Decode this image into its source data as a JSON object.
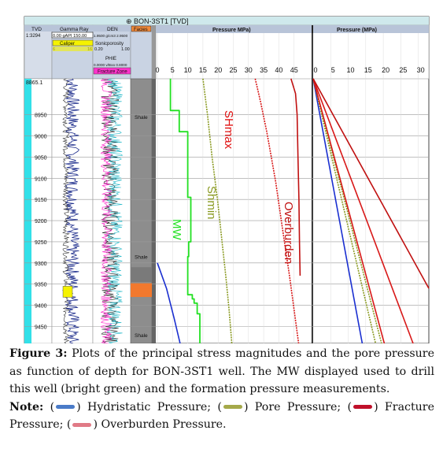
{
  "header": {
    "well_title": "⊕ BON-3ST1 [TVD]",
    "col_tvd": "TVD",
    "tvd_scale": "1:3294",
    "col_gamma": "Gamma Ray",
    "gamma_range": "0.00 gAPI 150.00",
    "col_den": "DEN",
    "den_range": "1.9500 g/cm3 2.9500",
    "col_facies": "Facies",
    "caliper": "Caliper",
    "caliper_low": "6",
    "caliper_high": "16",
    "sonic": "Sonicporosity",
    "sonic_low": "0.20",
    "sonic_high": "1.00",
    "phie": "PHIE",
    "phie_range": "0.0000 v/Boo 0.8000",
    "fracture_zone": "Fracture Zone",
    "panel1_title": "Pressure MPa)",
    "panel2_title": "Pressure (MPa)"
  },
  "facies_labels": [
    {
      "depth": 8960,
      "text": "Shale"
    },
    {
      "depth": 9290,
      "text": "Shale"
    },
    {
      "depth": 9475,
      "text": "Shale"
    }
  ],
  "annotations": {
    "shmax": "SHmax",
    "shmin": "Shmin",
    "mw": "MW",
    "overburden": "Overburden"
  },
  "caption": {
    "fig_label": "Figure 3:",
    "fig_text": " Plots of the principal stress magnitudes and the pore pressure as function of depth for BON-3ST1 well. The MW displayed used to drill this well (bright green) and the formation pressure measurements.",
    "note_label": "Note:",
    "legend": [
      {
        "prefix": " (",
        "color": "#4a7bc8",
        "suffix": ") Hydristatic Pressure;"
      },
      {
        "prefix": " (",
        "color": "#a5a94a",
        "suffix": ") Pore Pressure;"
      },
      {
        "prefix": " (",
        "color": "#c0102a",
        "suffix": ") Fracture Pressure;"
      },
      {
        "prefix": " (",
        "color": "#e07a86",
        "suffix": ") Overburden Pressure."
      }
    ]
  },
  "colors": {
    "header_bg": "#c9d3e3",
    "title_bar": "#cfe9ec",
    "tvd_cyan": "#33e0e8",
    "yellow": "#f5f200",
    "magenta": "#ff33cc",
    "hydro": "#1a2fd0",
    "pore": "#8a9a22",
    "mw": "#22e022",
    "frac": "#d81818",
    "overburden": "#c01010"
  },
  "chart_data": [
    {
      "type": "line",
      "panel": "left",
      "title": "Pressure MPa)",
      "y_ticks": [
        8950,
        9000,
        9050,
        9100,
        9150,
        9200,
        9250,
        9300,
        9350,
        9400,
        9450
      ],
      "ylim": [
        8865.1,
        9490
      ],
      "y_top_label": "8865.1",
      "x_ticks": [
        0,
        5,
        10,
        15,
        20,
        25,
        30,
        35,
        40,
        45
      ],
      "xlim": [
        0,
        50
      ],
      "series": [
        {
          "name": "",
          "key": "hydro",
          "x": [
            0,
            3,
            5.5,
            7.5
          ],
          "y": [
            9300,
            9360,
            9430,
            9490
          ]
        },
        {
          "name": "MW",
          "key": "mw",
          "step": true,
          "x": [
            4.3,
            4.3,
            7.2,
            7.2,
            10.0,
            10.0,
            11.0,
            11.0,
            10.3,
            10.3,
            10.0,
            10.0,
            11.5,
            11.5,
            12.1,
            12.1,
            13.1,
            13.1,
            14.0,
            14.0
          ],
          "y": [
            8865,
            8940,
            8940,
            8990,
            8990,
            9145,
            9145,
            9250,
            9250,
            9285,
            9285,
            9375,
            9375,
            9385,
            9385,
            9395,
            9395,
            9420,
            9420,
            9490
          ]
        },
        {
          "name": "Shmin",
          "key": "pore",
          "x": [
            15,
            16.5,
            18.0,
            19.8,
            21.3,
            22.5,
            23.6,
            24.5
          ],
          "y": [
            8865,
            8950,
            9050,
            9150,
            9250,
            9330,
            9410,
            9490
          ]
        },
        {
          "name": "SHmax",
          "key": "frac",
          "x": [
            32.2,
            34.0,
            36.0,
            37.5,
            39.0,
            40.8,
            43.5,
            46.5
          ],
          "y": [
            8865,
            8920,
            8990,
            9050,
            9110,
            9200,
            9330,
            9490
          ]
        },
        {
          "name": "Overburden",
          "key": "overburden",
          "x": [
            44.0,
            45.5,
            46.0,
            46.3,
            46.6,
            46.8,
            47.0
          ],
          "y": [
            8865,
            8900,
            8950,
            9050,
            9150,
            9250,
            9330
          ]
        }
      ]
    },
    {
      "type": "line",
      "panel": "right",
      "title": "Pressure (MPa)",
      "x_ticks": [
        0,
        5,
        10,
        15,
        20,
        25,
        30
      ],
      "xlim": [
        0,
        33
      ],
      "ylim": [
        8865.1,
        9490
      ],
      "series": [
        {
          "name": "",
          "key": "hydro",
          "x": [
            0,
            14.0
          ],
          "y": [
            8865,
            9490
          ]
        },
        {
          "name": "",
          "key": "pore",
          "x": [
            0,
            17.8
          ],
          "y": [
            8865,
            9490
          ]
        },
        {
          "name": "",
          "key": "pore",
          "x": [
            0,
            19.5
          ],
          "y": [
            8865,
            9490
          ]
        },
        {
          "name": "",
          "key": "frac",
          "x": [
            0,
            20.3
          ],
          "y": [
            8865,
            9490
          ]
        },
        {
          "name": "",
          "key": "frac",
          "x": [
            0,
            28.5
          ],
          "y": [
            8865,
            9490
          ]
        },
        {
          "name": "",
          "key": "overburden",
          "x": [
            0,
            33
          ],
          "y": [
            8865,
            9360
          ]
        }
      ]
    }
  ]
}
